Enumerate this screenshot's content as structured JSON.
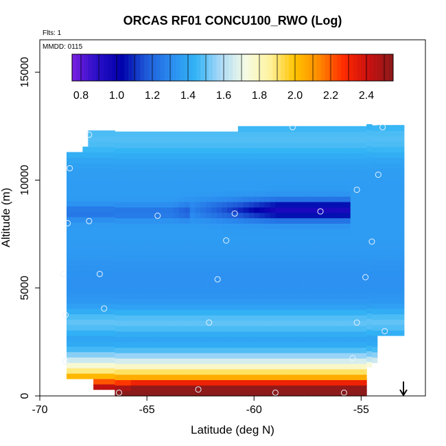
{
  "chart_data": {
    "type": "heatmap",
    "title": "ORCAS RF01 CONCU100_RWO (Log)",
    "flights_note": "Flts: 1",
    "date_note": "MMDD: 0115",
    "xlabel": "Latitude (deg N)",
    "ylabel": "Altitude (m)",
    "xlim": [
      -70,
      -52
    ],
    "ylim": [
      0,
      16500
    ],
    "x_ticks": [
      -70,
      -65,
      -60,
      -55
    ],
    "x_tick_labels": [
      "-70",
      "-65",
      "-60",
      "-55"
    ],
    "y_ticks": [
      0,
      5000,
      10000,
      15000
    ],
    "y_tick_labels": [
      "0",
      "5000",
      "10000",
      "15000"
    ],
    "colorbar": {
      "min": 0.75,
      "max": 2.55,
      "ticks": [
        0.8,
        1.0,
        1.2,
        1.4,
        1.6,
        1.8,
        2.0,
        2.2,
        2.4
      ],
      "tick_labels": [
        "0.8",
        "1.0",
        "1.2",
        "1.4",
        "1.6",
        "1.8",
        "2.0",
        "2.2",
        "2.4"
      ],
      "colors": [
        "#7a1fe0",
        "#2a0fc8",
        "#0000aa",
        "#1e5ad8",
        "#2b8cf0",
        "#33b4f5",
        "#a9d9f7",
        "#f4fbe6",
        "#fff3a0",
        "#ffc400",
        "#ff8a00",
        "#ff2a00",
        "#c81010",
        "#8b1a1a"
      ]
    },
    "flight_points": [
      {
        "lat": -68.9,
        "alt": 5650
      },
      {
        "lat": -68.8,
        "alt": 3750
      },
      {
        "lat": -68.7,
        "alt": 8000
      },
      {
        "lat": -68.6,
        "alt": 10550
      },
      {
        "lat": -67.7,
        "alt": 8100
      },
      {
        "lat": -67.2,
        "alt": 5650
      },
      {
        "lat": -67.0,
        "alt": 4050
      },
      {
        "lat": -66.3,
        "alt": 150
      },
      {
        "lat": -64.5,
        "alt": 8350
      },
      {
        "lat": -62.6,
        "alt": 300
      },
      {
        "lat": -62.1,
        "alt": 3400
      },
      {
        "lat": -61.7,
        "alt": 5400
      },
      {
        "lat": -61.3,
        "alt": 7200
      },
      {
        "lat": -60.9,
        "alt": 8450
      },
      {
        "lat": -59.0,
        "alt": 150
      },
      {
        "lat": -58.2,
        "alt": 12450
      },
      {
        "lat": -56.9,
        "alt": 8550
      },
      {
        "lat": -55.8,
        "alt": 150
      },
      {
        "lat": -55.4,
        "alt": 1750
      },
      {
        "lat": -55.2,
        "alt": 3400
      },
      {
        "lat": -55.2,
        "alt": 9550
      },
      {
        "lat": -54.8,
        "alt": 5500
      },
      {
        "lat": -54.5,
        "alt": 7150
      },
      {
        "lat": -54.2,
        "alt": 10250
      },
      {
        "lat": -54.0,
        "alt": 12450
      },
      {
        "lat": -53.9,
        "alt": 3000
      },
      {
        "lat": -68.8,
        "alt": 1600
      },
      {
        "lat": -67.7,
        "alt": 12100
      }
    ],
    "grid": false,
    "legend_position": "top-inside"
  }
}
